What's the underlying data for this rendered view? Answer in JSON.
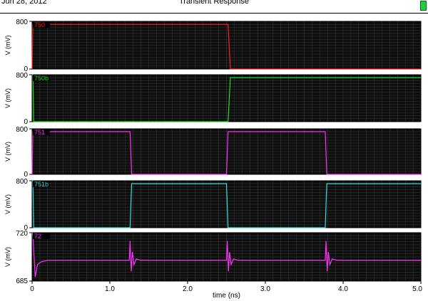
{
  "header": {
    "date": "Jun 28, 2012",
    "title": "Transient Response"
  },
  "colors": {
    "plot_bg": "#0d0d0d",
    "grid": "#3a3a3a",
    "frame": "#000000"
  },
  "chart_data": [
    {
      "type": "line",
      "series": [
        {
          "name": "750",
          "color": "#ff2020",
          "x": [
            0,
            0.01,
            2.52,
            2.55,
            5.0
          ],
          "y": [
            0,
            750,
            750,
            0,
            0
          ]
        }
      ],
      "ylabel": "V (mV)",
      "ylim": [
        0,
        800
      ],
      "yticks": [
        0,
        800
      ],
      "xlim": [
        0,
        5.0
      ],
      "grid": true
    },
    {
      "type": "line",
      "series": [
        {
          "name": "750b",
          "color": "#20e020",
          "x": [
            0,
            0.01,
            0.02,
            2.52,
            2.55,
            5.0
          ],
          "y": [
            800,
            800,
            0,
            0,
            750,
            750
          ]
        }
      ],
      "ylabel": "V (mV)",
      "ylim": [
        0,
        800
      ],
      "yticks": [
        0,
        800
      ],
      "xlim": [
        0,
        5.0
      ],
      "grid": true
    },
    {
      "type": "line",
      "series": [
        {
          "name": "751",
          "color": "#ff30ff",
          "x": [
            0,
            0.01,
            1.26,
            1.28,
            2.5,
            2.52,
            3.77,
            3.79,
            5.0
          ],
          "y": [
            0,
            750,
            750,
            0,
            0,
            750,
            750,
            0,
            0
          ]
        }
      ],
      "ylabel": "V (mV)",
      "ylim": [
        0,
        800
      ],
      "yticks": [
        0,
        800
      ],
      "xlim": [
        0,
        5.0
      ],
      "grid": true
    },
    {
      "type": "line",
      "series": [
        {
          "name": "751b",
          "color": "#30e0e0",
          "x": [
            0,
            0.01,
            0.02,
            1.26,
            1.28,
            2.5,
            2.52,
            3.77,
            3.79,
            5.0
          ],
          "y": [
            800,
            800,
            0,
            0,
            750,
            750,
            0,
            0,
            750,
            750
          ]
        }
      ],
      "ylabel": "V (mV)",
      "ylim": [
        0,
        800
      ],
      "yticks": [
        0,
        800
      ],
      "xlim": [
        0,
        5.0
      ],
      "grid": true
    },
    {
      "type": "line",
      "series": [
        {
          "name": "72",
          "color": "#ff30ff",
          "x": [
            0,
            0.01,
            0.04,
            0.07,
            0.12,
            0.2,
            1.25,
            1.26,
            1.275,
            1.29,
            1.31,
            1.34,
            1.4,
            2.5,
            2.51,
            2.525,
            2.54,
            2.56,
            2.59,
            2.65,
            3.77,
            3.78,
            3.795,
            3.81,
            3.83,
            3.86,
            3.92,
            5.0
          ],
          "y": [
            720,
            718,
            688,
            697,
            699,
            700,
            700,
            714,
            692,
            706,
            697,
            701,
            700,
            700,
            714,
            692,
            706,
            697,
            701,
            700,
            700,
            714,
            692,
            706,
            697,
            701,
            700,
            700
          ]
        }
      ],
      "ylabel": "V (mV)",
      "xlabel": "time (ns)",
      "ylim": [
        685,
        720
      ],
      "yticks": [
        685,
        720
      ],
      "xlim": [
        0,
        5.0
      ],
      "xticks": [
        0,
        1.0,
        2.0,
        3.0,
        4.0,
        5.0
      ],
      "xtick_labels": [
        "0",
        "1.0",
        "2.0",
        "3.0",
        "4.0",
        "5.0"
      ],
      "grid": true
    }
  ]
}
